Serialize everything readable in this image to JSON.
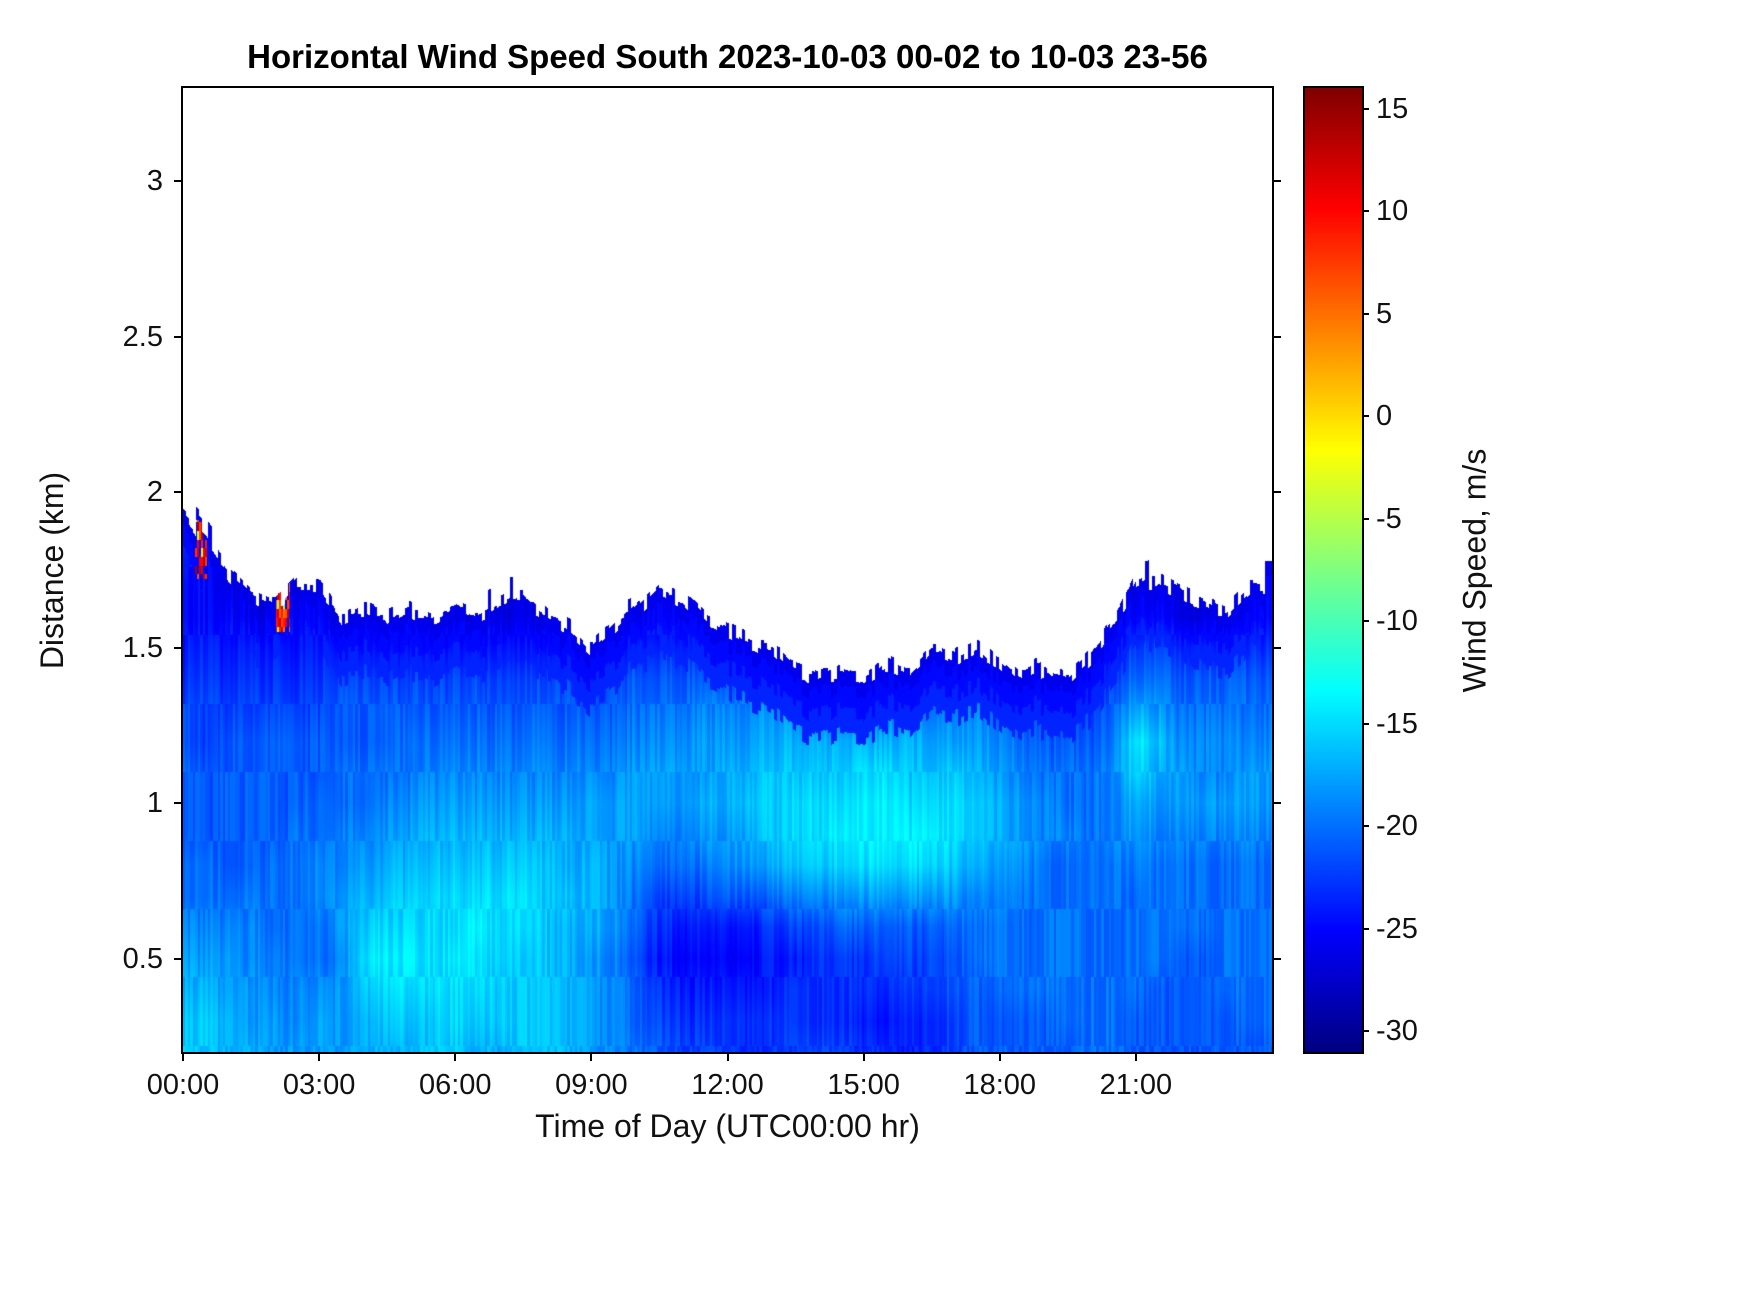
{
  "title": "Horizontal Wind Speed South 2023-10-03 00-02 to 10-03 23-56",
  "xlabel": "Time of Day (UTC00:00 hr)",
  "ylabel": "Distance (km)",
  "axes": {
    "xlim": [
      0,
      24
    ],
    "ylim": [
      0.2,
      3.3
    ],
    "xticks": [
      {
        "value": 0,
        "label": "00:00"
      },
      {
        "value": 3,
        "label": "03:00"
      },
      {
        "value": 6,
        "label": "06:00"
      },
      {
        "value": 9,
        "label": "09:00"
      },
      {
        "value": 12,
        "label": "12:00"
      },
      {
        "value": 15,
        "label": "15:00"
      },
      {
        "value": 18,
        "label": "18:00"
      },
      {
        "value": 21,
        "label": "21:00"
      }
    ],
    "yticks": [
      {
        "value": 0.5,
        "label": "0.5"
      },
      {
        "value": 1,
        "label": "1"
      },
      {
        "value": 1.5,
        "label": "1.5"
      },
      {
        "value": 2,
        "label": "2"
      },
      {
        "value": 2.5,
        "label": "2.5"
      },
      {
        "value": 3,
        "label": "3"
      }
    ]
  },
  "colorbar": {
    "label": "Wind Speed, m/s",
    "clim": [
      -31,
      16
    ],
    "ticks": [
      {
        "value": 15,
        "label": "15"
      },
      {
        "value": 10,
        "label": "10"
      },
      {
        "value": 5,
        "label": "5"
      },
      {
        "value": 0,
        "label": "0"
      },
      {
        "value": -5,
        "label": "-5"
      },
      {
        "value": -10,
        "label": "-10"
      },
      {
        "value": -15,
        "label": "-15"
      },
      {
        "value": -20,
        "label": "-20"
      },
      {
        "value": -25,
        "label": "-25"
      },
      {
        "value": -30,
        "label": "-30"
      }
    ],
    "colormap_jet_anchors": [
      "#000080",
      "#0000ff",
      "#00ffff",
      "#ffff00",
      "#ff0000",
      "#800000"
    ]
  },
  "chart_data": {
    "type": "heatmap",
    "value_unit": "m/s",
    "x_unit": "hour of day (UTC)",
    "y_unit": "km",
    "x_hours": [
      0,
      0.5,
      1,
      1.5,
      2,
      2.5,
      3,
      3.5,
      4,
      4.5,
      5,
      5.5,
      6,
      6.5,
      7,
      7.5,
      8,
      8.5,
      9,
      9.5,
      10,
      10.5,
      11,
      11.5,
      12,
      12.5,
      13,
      13.5,
      14,
      14.5,
      15,
      15.5,
      16,
      16.5,
      17,
      17.5,
      18,
      18.5,
      19,
      19.5,
      20,
      20.5,
      21,
      21.5,
      22,
      22.5,
      23,
      23.5
    ],
    "y_km": [
      0.2,
      0.3,
      0.4,
      0.5,
      0.6,
      0.7,
      0.8,
      0.9,
      1.0,
      1.1,
      1.2,
      1.3,
      1.4,
      1.5,
      1.6,
      1.7,
      1.8,
      1.9
    ],
    "top_height_km": [
      1.93,
      1.84,
      1.74,
      1.66,
      1.64,
      1.7,
      1.7,
      1.6,
      1.62,
      1.6,
      1.62,
      1.6,
      1.63,
      1.6,
      1.64,
      1.66,
      1.61,
      1.57,
      1.5,
      1.56,
      1.62,
      1.68,
      1.66,
      1.6,
      1.56,
      1.52,
      1.49,
      1.43,
      1.4,
      1.42,
      1.4,
      1.45,
      1.42,
      1.5,
      1.47,
      1.5,
      1.45,
      1.4,
      1.43,
      1.4,
      1.47,
      1.58,
      1.7,
      1.72,
      1.68,
      1.64,
      1.62,
      1.7
    ],
    "values": [
      [
        -16,
        -16,
        -17,
        -17,
        -18,
        -18,
        -18,
        -18,
        -17,
        -17,
        -17,
        -16,
        -16,
        -17,
        -17,
        -16,
        -16,
        -17,
        -18,
        -19,
        -20,
        -21,
        -22,
        -22,
        -23,
        -23,
        -23,
        -22,
        -22,
        -22,
        -23,
        -23,
        -24,
        -23,
        -22,
        -21,
        -21,
        -21,
        -21,
        -21,
        -20,
        -20,
        -21,
        -21,
        -21,
        -21,
        -21,
        -21
      ],
      [
        -16,
        -16,
        -17,
        -18,
        -18,
        -19,
        -18,
        -18,
        -17,
        -16,
        -16,
        -16,
        -15,
        -16,
        -16,
        -16,
        -16,
        -17,
        -18,
        -19,
        -21,
        -22,
        -23,
        -23,
        -23,
        -23,
        -23,
        -23,
        -23,
        -23,
        -24,
        -24,
        -24,
        -23,
        -22,
        -21,
        -21,
        -21,
        -21,
        -20,
        -20,
        -20,
        -21,
        -21,
        -21,
        -21,
        -21,
        -20
      ],
      [
        -17,
        -17,
        -18,
        -18,
        -19,
        -19,
        -19,
        -18,
        -16,
        -15,
        -15,
        -15,
        -15,
        -15,
        -16,
        -16,
        -16,
        -17,
        -18,
        -19,
        -21,
        -23,
        -24,
        -24,
        -24,
        -24,
        -24,
        -23,
        -23,
        -23,
        -23,
        -23,
        -23,
        -22,
        -21,
        -21,
        -20,
        -20,
        -20,
        -20,
        -20,
        -20,
        -20,
        -21,
        -21,
        -21,
        -20,
        -20
      ],
      [
        -18,
        -18,
        -18,
        -19,
        -19,
        -20,
        -20,
        -19,
        -15,
        -14,
        -14,
        -15,
        -14,
        -15,
        -15,
        -16,
        -16,
        -17,
        -18,
        -19,
        -22,
        -24,
        -25,
        -25,
        -25,
        -25,
        -24,
        -24,
        -23,
        -23,
        -23,
        -22,
        -22,
        -22,
        -21,
        -20,
        -20,
        -20,
        -20,
        -20,
        -20,
        -20,
        -20,
        -20,
        -21,
        -21,
        -20,
        -20
      ],
      [
        -19,
        -19,
        -19,
        -19,
        -20,
        -20,
        -20,
        -18,
        -16,
        -15,
        -15,
        -15,
        -15,
        -14,
        -15,
        -15,
        -16,
        -17,
        -17,
        -18,
        -21,
        -23,
        -24,
        -24,
        -24,
        -24,
        -23,
        -22,
        -22,
        -21,
        -21,
        -21,
        -21,
        -21,
        -20,
        -20,
        -20,
        -20,
        -20,
        -20,
        -20,
        -20,
        -20,
        -20,
        -20,
        -20,
        -20,
        -20
      ],
      [
        -20,
        -20,
        -20,
        -20,
        -20,
        -20,
        -19,
        -18,
        -17,
        -16,
        -16,
        -15,
        -15,
        -15,
        -15,
        -15,
        -16,
        -16,
        -17,
        -18,
        -20,
        -22,
        -22,
        -22,
        -21,
        -21,
        -20,
        -19,
        -19,
        -18,
        -18,
        -18,
        -18,
        -18,
        -18,
        -19,
        -19,
        -20,
        -20,
        -20,
        -20,
        -20,
        -20,
        -20,
        -20,
        -20,
        -20,
        -20
      ],
      [
        -20,
        -20,
        -21,
        -21,
        -20,
        -20,
        -19,
        -19,
        -18,
        -17,
        -17,
        -16,
        -16,
        -16,
        -16,
        -16,
        -16,
        -17,
        -17,
        -18,
        -19,
        -20,
        -20,
        -20,
        -19,
        -18,
        -17,
        -16,
        -16,
        -15,
        -15,
        -15,
        -15,
        -15,
        -16,
        -17,
        -18,
        -19,
        -20,
        -20,
        -20,
        -20,
        -19,
        -20,
        -20,
        -20,
        -20,
        -20
      ],
      [
        -21,
        -21,
        -21,
        -21,
        -21,
        -20,
        -20,
        -19,
        -19,
        -18,
        -18,
        -17,
        -17,
        -17,
        -17,
        -17,
        -17,
        -17,
        -18,
        -18,
        -18,
        -19,
        -19,
        -18,
        -18,
        -17,
        -16,
        -15,
        -15,
        -14,
        -14,
        -14,
        -14,
        -14,
        -15,
        -16,
        -17,
        -18,
        -19,
        -19,
        -20,
        -19,
        -18,
        -19,
        -19,
        -19,
        -19,
        -19
      ],
      [
        -21,
        -21,
        -21,
        -21,
        -21,
        -21,
        -20,
        -20,
        -20,
        -19,
        -19,
        -18,
        -18,
        -18,
        -18,
        -18,
        -18,
        -18,
        -18,
        -18,
        -18,
        -18,
        -18,
        -17,
        -17,
        -16,
        -16,
        -15,
        -15,
        -15,
        -14,
        -14,
        -15,
        -15,
        -15,
        -16,
        -17,
        -18,
        -19,
        -20,
        -20,
        -19,
        -17,
        -18,
        -18,
        -18,
        -18,
        -18
      ],
      [
        -21,
        -21,
        -21,
        -21,
        -21,
        -21,
        -21,
        -20,
        -20,
        -20,
        -20,
        -19,
        -19,
        -19,
        -19,
        -19,
        -19,
        -19,
        -19,
        -19,
        -18,
        -18,
        -18,
        -18,
        -17,
        -17,
        -16,
        -16,
        -16,
        -16,
        -15,
        -15,
        -16,
        -16,
        -16,
        -17,
        -18,
        -19,
        -20,
        -20,
        -20,
        -19,
        -15,
        -17,
        -18,
        -19,
        -19,
        -18
      ],
      [
        -22,
        -22,
        -21,
        -21,
        -21,
        -21,
        -21,
        -21,
        -21,
        -21,
        -20,
        -20,
        -20,
        -20,
        -20,
        -20,
        -20,
        -20,
        -20,
        -20,
        -19,
        -19,
        -19,
        -18,
        -18,
        -18,
        -17,
        -17,
        -17,
        -17,
        -17,
        -17,
        -17,
        -17,
        -18,
        -18,
        -19,
        -20,
        -21,
        -21,
        -21,
        -20,
        -14,
        -16,
        -19,
        -19,
        -19,
        -19
      ],
      [
        -22,
        -22,
        -22,
        -22,
        -22,
        -22,
        -22,
        -21,
        -21,
        -21,
        -21,
        -21,
        -21,
        -21,
        -21,
        -21,
        -21,
        -21,
        -21,
        -21,
        -20,
        -20,
        -20,
        -19,
        -19,
        -19,
        -18,
        -19,
        -19,
        -20,
        -20,
        -20,
        -19,
        -19,
        -19,
        -19,
        -20,
        -21,
        -22,
        -22,
        -22,
        -21,
        -17,
        -18,
        -20,
        -20,
        -20,
        -20
      ],
      [
        -23,
        -23,
        -23,
        -23,
        -23,
        -23,
        -23,
        -22,
        -22,
        -22,
        -22,
        -22,
        -22,
        -22,
        -22,
        -22,
        -22,
        -22,
        -22,
        -22,
        -21,
        -21,
        -21,
        -21,
        -21,
        -21,
        -21,
        -23,
        -24,
        -24,
        -24,
        -24,
        -24,
        -23,
        -23,
        -23,
        -24,
        -25,
        -25,
        -25,
        -24,
        -22,
        -20,
        -20,
        -21,
        -21,
        -21,
        -21
      ],
      [
        -24,
        -24,
        -24,
        -24,
        -24,
        -24,
        -24,
        -24,
        -24,
        -24,
        -24,
        -24,
        -24,
        -24,
        -24,
        -24,
        -24,
        -25,
        -25,
        -25,
        -23,
        -23,
        -23,
        -23,
        -24,
        -25,
        -26,
        null,
        null,
        null,
        null,
        null,
        null,
        -26,
        null,
        -26,
        null,
        null,
        null,
        null,
        null,
        -24,
        -22,
        -22,
        -23,
        -23,
        -23,
        -23
      ],
      [
        -25,
        -25,
        -25,
        -26,
        -26,
        -25,
        -25,
        -26,
        -26,
        -26,
        -26,
        -26,
        -26,
        -26,
        -26,
        -26,
        -26,
        null,
        null,
        null,
        -26,
        -25,
        -25,
        -26,
        null,
        null,
        null,
        null,
        null,
        null,
        null,
        null,
        null,
        null,
        null,
        null,
        null,
        null,
        null,
        null,
        null,
        null,
        -25,
        -25,
        -26,
        -26,
        -26,
        -25
      ],
      [
        -25,
        -25,
        -26,
        null,
        null,
        -26,
        -26,
        null,
        null,
        null,
        null,
        null,
        null,
        null,
        null,
        null,
        null,
        null,
        null,
        null,
        null,
        null,
        null,
        null,
        null,
        null,
        null,
        null,
        null,
        null,
        null,
        null,
        null,
        null,
        null,
        null,
        null,
        null,
        null,
        null,
        null,
        null,
        -26,
        -26,
        null,
        null,
        null,
        -25
      ],
      [
        -24,
        -25,
        null,
        null,
        null,
        null,
        null,
        null,
        null,
        null,
        null,
        null,
        null,
        null,
        null,
        null,
        null,
        null,
        null,
        null,
        null,
        null,
        null,
        null,
        null,
        null,
        null,
        null,
        null,
        null,
        null,
        null,
        null,
        null,
        null,
        null,
        null,
        null,
        null,
        null,
        null,
        null,
        null,
        null,
        null,
        null,
        null,
        null
      ],
      [
        -23,
        null,
        null,
        null,
        null,
        null,
        null,
        null,
        null,
        null,
        null,
        null,
        null,
        null,
        null,
        null,
        null,
        null,
        null,
        null,
        null,
        null,
        null,
        null,
        null,
        null,
        null,
        null,
        null,
        null,
        null,
        null,
        null,
        null,
        null,
        null,
        null,
        null,
        null,
        null,
        null,
        null,
        null,
        null,
        null,
        null,
        null,
        null
      ]
    ],
    "warm_patches": [
      {
        "t_hr": 0.4,
        "t_width_hr": 0.25,
        "h_bottom_km": 1.72,
        "h_top_km": 1.91,
        "value_ms": 10
      },
      {
        "t_hr": 2.2,
        "t_width_hr": 0.3,
        "h_bottom_km": 1.55,
        "h_top_km": 1.74,
        "value_ms": 8
      }
    ]
  }
}
